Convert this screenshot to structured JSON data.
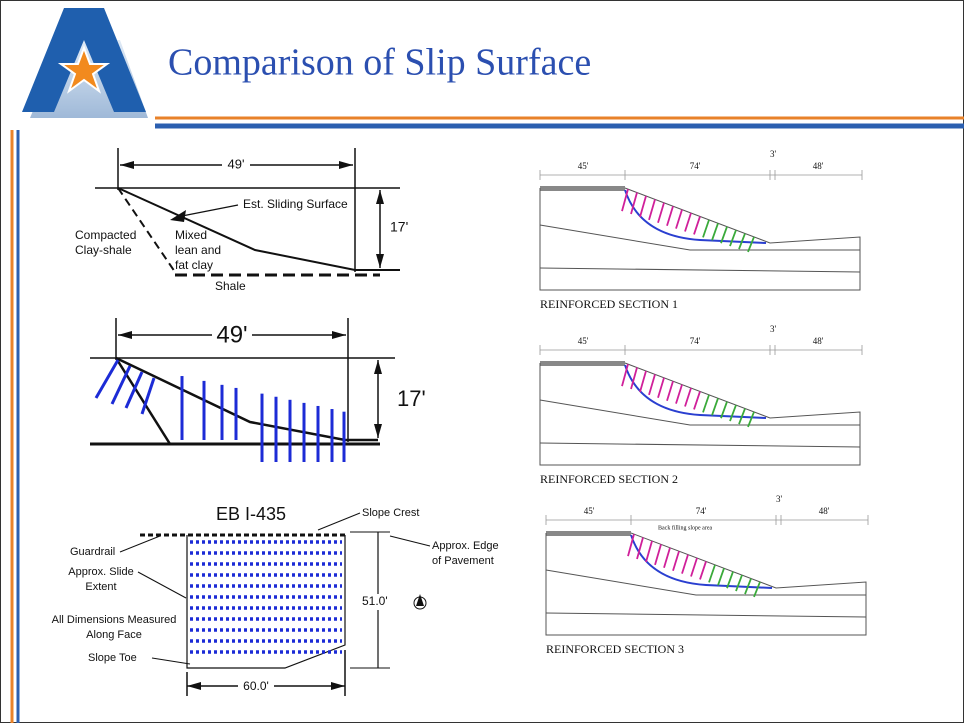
{
  "header": {
    "title": "Comparison of Slip Surface"
  },
  "profile_sketch": {
    "width_dimension": "49'",
    "height_dimension": "17'",
    "sliding_label": "Est. Sliding Surface",
    "left_material": [
      "Compacted",
      "Clay-shale"
    ],
    "middle_material": [
      "Mixed",
      "lean and",
      "fat clay"
    ],
    "base_material": "Shale"
  },
  "reinforced_sketch": {
    "width_dimension": "49'",
    "height_dimension": "17'"
  },
  "plan_view": {
    "title": "EB I-435",
    "slope_crest": "Slope Crest",
    "guardrail": "Guardrail",
    "slide_extent": [
      "Approx. Slide",
      "Extent"
    ],
    "measure_note": [
      "All Dimensions Measured",
      "Along Face"
    ],
    "slope_toe": "Slope Toe",
    "pavement_edge": [
      "Approx. Edge",
      "of Pavement"
    ],
    "height_dimension": "51.0'",
    "width_dimension": "60.0'"
  },
  "sections": [
    {
      "dimensions": [
        "45'",
        "74'",
        "3'",
        "48'"
      ],
      "caption": "REINFORCED SECTION 1"
    },
    {
      "dimensions": [
        "45'",
        "74'",
        "3'",
        "48'"
      ],
      "caption": "REINFORCED SECTION 2"
    },
    {
      "dimensions": [
        "45'",
        "74'",
        "3'",
        "48'"
      ],
      "caption": "REINFORCED SECTION 3",
      "note": "Back filling slope area"
    }
  ]
}
